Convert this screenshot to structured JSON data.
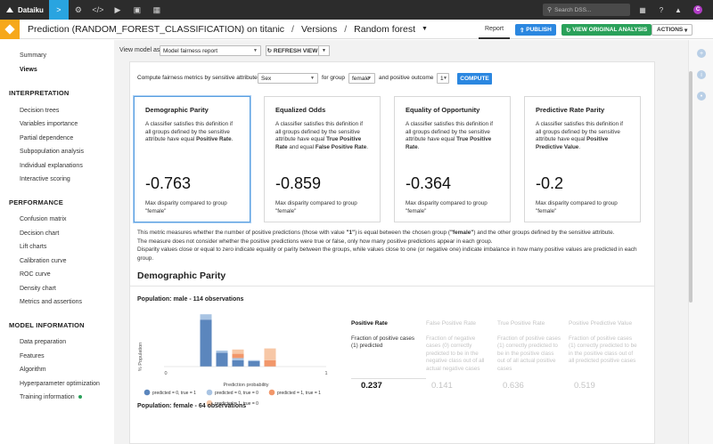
{
  "topnav": {
    "brand": "Dataiku",
    "search_placeholder": "Search DSS...",
    "avatar_letter": "C"
  },
  "header": {
    "crumbs": [
      "Prediction (RANDOM_FOREST_CLASSIFICATION) on titanic",
      "Versions",
      "Random forest"
    ],
    "tab_report": "Report",
    "publish": "PUBLISH",
    "view_original": "VIEW ORIGINAL ANALYSIS",
    "actions": "ACTIONS"
  },
  "sidebar": {
    "top_items": [
      "Summary",
      "Views"
    ],
    "sections": [
      {
        "title": "INTERPRETATION",
        "items": [
          "Decision trees",
          "Variables importance",
          "Partial dependence",
          "Subpopulation analysis",
          "Individual explanations",
          "Interactive scoring"
        ]
      },
      {
        "title": "PERFORMANCE",
        "items": [
          "Confusion matrix",
          "Decision chart",
          "Lift charts",
          "Calibration curve",
          "ROC curve",
          "Density chart",
          "Metrics and assertions"
        ]
      },
      {
        "title": "MODEL INFORMATION",
        "items": [
          "Data preparation",
          "Features",
          "Algorithm",
          "Hyperparameter optimization",
          "Training information"
        ]
      }
    ]
  },
  "viewbar": {
    "label": "View model as",
    "select_value": "Model fairness report",
    "refresh": "REFRESH VIEW"
  },
  "compute": {
    "label": "Compute fairness metrics by sensitive attribute",
    "attribute": "Sex",
    "for_group": "for group",
    "group": "female",
    "and_outcome": "and positive outcome",
    "outcome": "1",
    "button": "COMPUTE"
  },
  "cards": [
    {
      "title": "Demographic Parity",
      "desc_parts": [
        "A classifier satisfies this definition if all groups defined by the sensitive attribute have equal ",
        "Positive Rate",
        "."
      ],
      "value": "-0.763",
      "disparity": "Max disparity compared to group \"female\""
    },
    {
      "title": "Equalized Odds",
      "desc_parts": [
        "A classifier satisfies this definition if all groups defined by the sensitive attribute have equal ",
        "True Positive Rate",
        " and equal ",
        "False Positive Rate",
        "."
      ],
      "value": "-0.859",
      "disparity": "Max disparity compared to group \"female\""
    },
    {
      "title": "Equality of Opportunity",
      "desc_parts": [
        "A classifier satisfies this definition if all groups defined by the sensitive attribute have equal ",
        "True Positive Rate",
        "."
      ],
      "value": "-0.364",
      "disparity": "Max disparity compared to group \"female\""
    },
    {
      "title": "Predictive Rate Parity",
      "desc_parts": [
        "A classifier satisfies this definition if all groups defined by the sensitive attribute have equal ",
        "Positive Predictive Value",
        "."
      ],
      "value": "-0.2",
      "disparity": "Max disparity compared to group \"female\""
    }
  ],
  "explanation": {
    "line1_a": "This metric measures whether the number of positive predictions (those with value ",
    "line1_b": "\"1\"",
    "line1_c": ") is equal between the chosen group (",
    "line1_d": "\"female\"",
    "line1_e": ") and the other groups defined by the sensitive attribute.",
    "line2": "The measure does not consider whether the positive predictions were true or false, only how many positive predictions appear in each group.",
    "line3": "Disparity values close or equal to zero indicate equality or parity between the groups, while values close to one (or negative one) indicate imbalance in how many positive values are predicted in each group."
  },
  "section_title": "Demographic Parity",
  "populations": [
    {
      "title": "Population: male - 114 observations"
    },
    {
      "title": "Population: female - 64 observations"
    }
  ],
  "chart_data": {
    "type": "bar",
    "title": "",
    "xlabel": "Prediction probability",
    "ylabel": "% Population",
    "xlim": [
      0,
      1
    ],
    "x_ticks": [
      "0",
      "1"
    ],
    "stacked": true,
    "bins": [
      0.25,
      0.35,
      0.45,
      0.55,
      0.65
    ],
    "series": [
      {
        "name": "predicted = 0, true = 1",
        "color": "#5b86bd",
        "values": [
          44,
          13,
          6,
          5,
          0
        ]
      },
      {
        "name": "predicted = 0, true = 0",
        "color": "#a9c4e3",
        "values": [
          5,
          2,
          2,
          1,
          0
        ]
      },
      {
        "name": "predicted = 1, true = 1",
        "color": "#f2976a",
        "values": [
          0,
          0,
          4,
          0,
          6
        ]
      },
      {
        "name": "predicted = 1, true = 0",
        "color": "#f7c7a6",
        "values": [
          0,
          0,
          4,
          0,
          11
        ]
      }
    ]
  },
  "metrics": [
    {
      "name": "Positive Rate",
      "desc": "Fraction of positive cases (1) predicted",
      "value": "0.237",
      "active": true
    },
    {
      "name": "False Positive Rate",
      "desc": "Fraction of negative cases (0) correctly predicted to be in the negative class out of all actual negative cases",
      "value": "0.141",
      "active": false
    },
    {
      "name": "True Positive Rate",
      "desc": "Fraction of positive cases (1) correctly predicted to be in the positive class out of all actual positive cases",
      "value": "0.636",
      "active": false
    },
    {
      "name": "Positive Predictive Value",
      "desc": "Fraction of positive cases (1) correctly predicted to be in the positive class out of all predicted positive cases",
      "value": "0.519",
      "active": false
    }
  ]
}
